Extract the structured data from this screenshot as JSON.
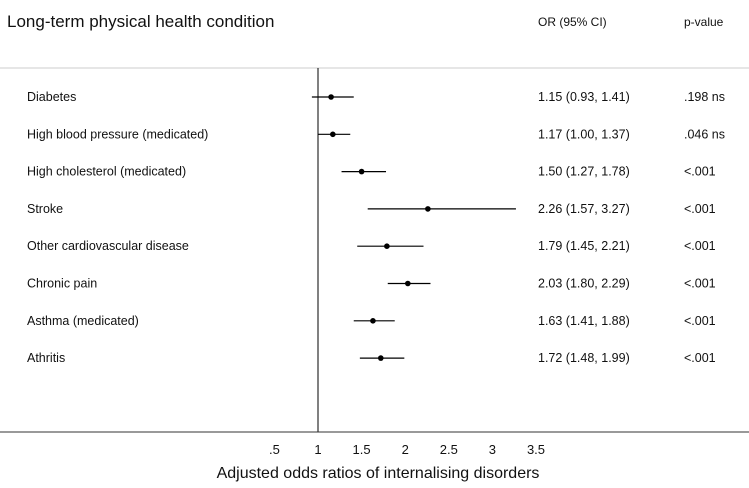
{
  "header": {
    "title": "Long-term physical health condition",
    "or_column_label": "OR (95% CI)",
    "p_column_label": "p-value"
  },
  "chart_data": {
    "type": "scatter",
    "subtype": "forest-plot",
    "xlabel": "Adjusted odds ratios of internalising disorders",
    "reference_line": 1,
    "x_ticks": [
      {
        "value": 0.5,
        "label": ".5"
      },
      {
        "value": 1,
        "label": "1"
      },
      {
        "value": 1.5,
        "label": "1.5"
      },
      {
        "value": 2,
        "label": "2"
      },
      {
        "value": 2.5,
        "label": "2.5"
      },
      {
        "value": 3,
        "label": "3"
      },
      {
        "value": 3.5,
        "label": "3.5"
      }
    ],
    "rows": [
      {
        "label": "Diabetes",
        "or": 1.15,
        "lo": 0.93,
        "hi": 1.41,
        "or_text": "1.15 (0.93, 1.41)",
        "p_text": ".198 ns"
      },
      {
        "label": "High blood pressure (medicated)",
        "or": 1.17,
        "lo": 1.0,
        "hi": 1.37,
        "or_text": "1.17 (1.00, 1.37)",
        "p_text": ".046 ns"
      },
      {
        "label": "High cholesterol (medicated)",
        "or": 1.5,
        "lo": 1.27,
        "hi": 1.78,
        "or_text": "1.50 (1.27, 1.78)",
        "p_text": "<.001"
      },
      {
        "label": "Stroke",
        "or": 2.26,
        "lo": 1.57,
        "hi": 3.27,
        "or_text": "2.26 (1.57, 3.27)",
        "p_text": "<.001"
      },
      {
        "label": "Other cardiovascular disease",
        "or": 1.79,
        "lo": 1.45,
        "hi": 2.21,
        "or_text": "1.79 (1.45, 2.21)",
        "p_text": "<.001"
      },
      {
        "label": "Chronic pain",
        "or": 2.03,
        "lo": 1.8,
        "hi": 2.29,
        "or_text": "2.03 (1.80, 2.29)",
        "p_text": "<.001"
      },
      {
        "label": "Asthma (medicated)",
        "or": 1.63,
        "lo": 1.41,
        "hi": 1.88,
        "or_text": "1.63 (1.41, 1.88)",
        "p_text": "<.001"
      },
      {
        "label": "Athritis",
        "or": 1.72,
        "lo": 1.48,
        "hi": 1.99,
        "or_text": "1.72 (1.48, 1.99)",
        "p_text": "<.001"
      }
    ]
  }
}
